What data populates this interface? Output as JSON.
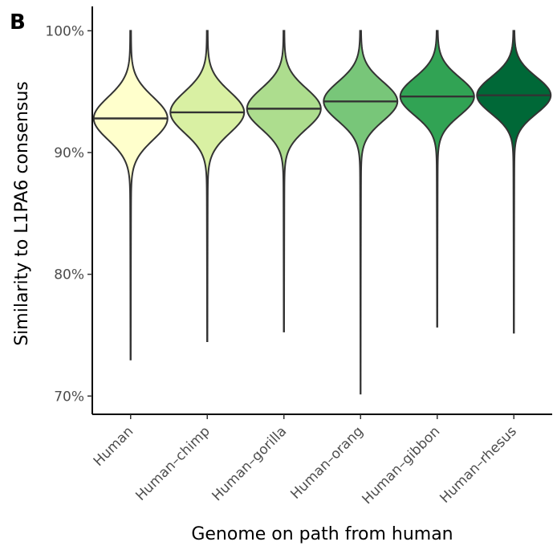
{
  "panel_label": "B",
  "chart_data": {
    "type": "violin",
    "xlabel": "Genome on path from human",
    "ylabel": "Similarity to L1PA6 consensus",
    "ylim": [
      68.5,
      102
    ],
    "yticks": [
      70,
      80,
      90,
      100
    ],
    "ytick_labels": [
      "70%",
      "80%",
      "90%",
      "100%"
    ],
    "grid": false,
    "legend": "none",
    "categories": [
      "Human",
      "Human–chimp",
      "Human–gorilla",
      "Human–orang",
      "Human–gibbon",
      "Human–rhesus"
    ],
    "series": [
      {
        "category": "Human",
        "min": 73.0,
        "max": 100.0,
        "median": 92.8,
        "spread": 1.75,
        "fill": "#ffffcc"
      },
      {
        "category": "Human–chimp",
        "min": 74.5,
        "max": 100.0,
        "median": 93.3,
        "spread": 1.7,
        "fill": "#d9f0a3"
      },
      {
        "category": "Human–gorilla",
        "min": 75.3,
        "max": 100.0,
        "median": 93.6,
        "spread": 1.65,
        "fill": "#addd8e"
      },
      {
        "category": "Human–orang",
        "min": 70.2,
        "max": 100.0,
        "median": 94.2,
        "spread": 1.6,
        "fill": "#78c679"
      },
      {
        "category": "Human–gibbon",
        "min": 75.7,
        "max": 100.0,
        "median": 94.6,
        "spread": 1.55,
        "fill": "#31a354"
      },
      {
        "category": "Human–rhesus",
        "min": 75.2,
        "max": 100.0,
        "median": 94.7,
        "spread": 1.5,
        "fill": "#006837"
      }
    ]
  }
}
